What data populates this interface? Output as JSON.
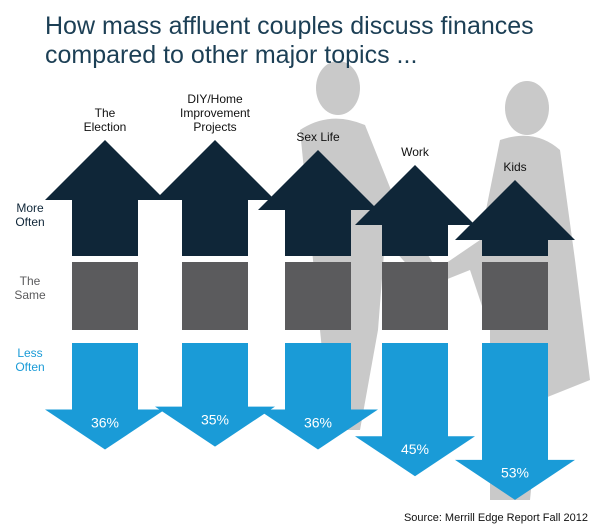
{
  "chart_data": {
    "type": "arrow",
    "title": "How mass affluent couples discuss finances compared to other major topics ...",
    "categories": [
      "The Election",
      "DIY/Home Improvement Projects",
      "Sex Life",
      "Work",
      "Kids"
    ],
    "rows": [
      {
        "label": "More Often",
        "color": "#0f2638"
      },
      {
        "label": "The Same",
        "color": "#5b5b5d"
      },
      {
        "label": "Less Often",
        "color": "#1a9bd7"
      }
    ],
    "series": [
      {
        "name": "Less Often",
        "color": "#1a9bd7",
        "values": [
          36,
          35,
          36,
          45,
          53
        ],
        "value_labels": [
          "36%",
          "35%",
          "36%",
          "45%",
          "53%"
        ]
      }
    ],
    "source": "Source: Merrill Edge Report Fall 2012"
  }
}
